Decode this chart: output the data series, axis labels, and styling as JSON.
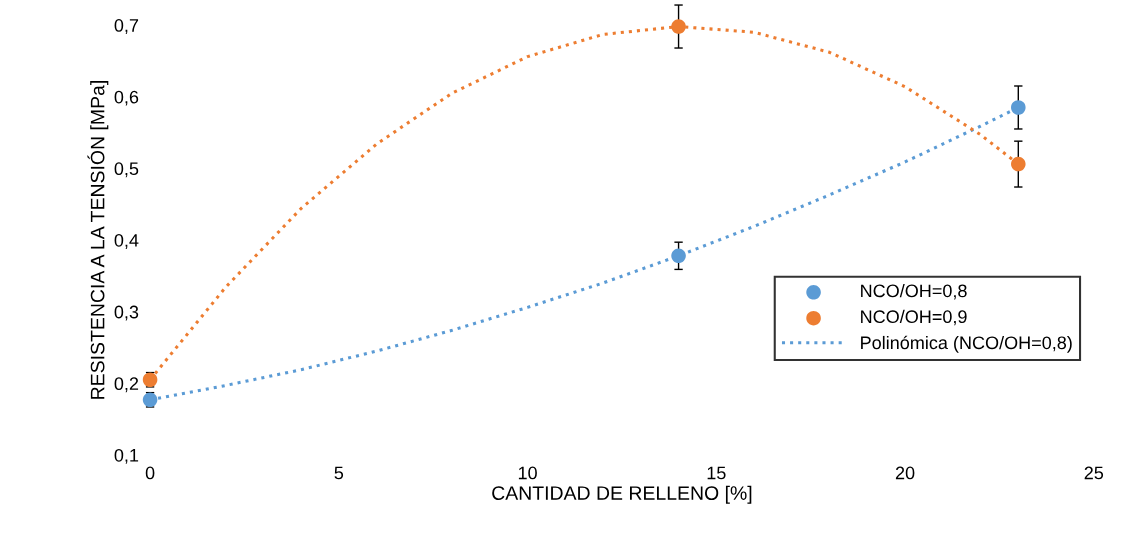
{
  "chart_data": {
    "type": "scatter",
    "xlabel": "CANTIDAD DE RELLENO [%]",
    "ylabel": "RESISTENCIA A LA TENSIÓN [MPa]",
    "xlim": [
      0,
      25
    ],
    "xticks": [
      0,
      5,
      10,
      15,
      20,
      25
    ],
    "ylim": [
      0.1,
      0.7
    ],
    "yticks": [
      {
        "value": 0.1,
        "label": "0,1"
      },
      {
        "value": 0.2,
        "label": "0,2"
      },
      {
        "value": 0.3,
        "label": "0,3"
      },
      {
        "value": 0.4,
        "label": "0,4"
      },
      {
        "value": 0.5,
        "label": "0,5"
      },
      {
        "value": 0.6,
        "label": "0,6"
      },
      {
        "value": 0.7,
        "label": "0,7"
      }
    ],
    "grid": false,
    "legend": "right",
    "marker": "circle",
    "series": [
      {
        "name": "NCO/OH=0,8",
        "color": "#5b9bd5",
        "x": [
          0,
          14,
          23
        ],
        "values": [
          0.177,
          0.378,
          0.585
        ],
        "errors": [
          0.01,
          0.019,
          0.03
        ]
      },
      {
        "name": "NCO/OH=0,9",
        "color": "#ed7d31",
        "x": [
          0,
          14,
          23
        ],
        "values": [
          0.205,
          0.698,
          0.506
        ],
        "errors": [
          0.01,
          0.03,
          0.032
        ]
      },
      {
        "name": "Polinómica (NCO/OH=0,8)",
        "type": "line",
        "line_style": "dotted",
        "marker": "none",
        "color": "#5b9bd5",
        "x": [
          0,
          2,
          4,
          6,
          8,
          10,
          12,
          14,
          16,
          18,
          20,
          22,
          23
        ],
        "values": [
          0.177,
          0.197,
          0.219,
          0.245,
          0.274,
          0.306,
          0.34,
          0.378,
          0.419,
          0.463,
          0.509,
          0.559,
          0.585
        ]
      },
      {
        "type": "line",
        "line_style": "dotted",
        "marker": "none",
        "color": "#ed7d31",
        "x": [
          0,
          2,
          4,
          6,
          8,
          10,
          12,
          14,
          16,
          18,
          20,
          22,
          23
        ],
        "values": [
          0.205,
          0.334,
          0.444,
          0.534,
          0.605,
          0.656,
          0.687,
          0.698,
          0.69,
          0.662,
          0.614,
          0.547,
          0.506
        ]
      }
    ]
  }
}
